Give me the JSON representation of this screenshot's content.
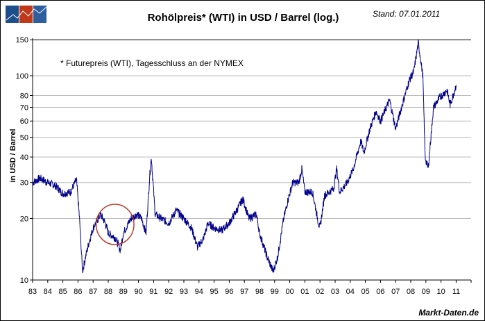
{
  "chart_data": {
    "type": "line",
    "title": "Rohölpreis* (WTI) in USD / Barrel (log.)",
    "date_label": "Stand: 07.01.2011",
    "note": "* Futurepreis (WTI), Tagesschluss an der NYMEX",
    "ylabel": "in USD / Barrel",
    "xlabel": "",
    "yscale": "log",
    "ylim": [
      10,
      150
    ],
    "xlim": [
      1983,
      2011.5
    ],
    "yticks": [
      10,
      20,
      30,
      40,
      50,
      60,
      70,
      80,
      100,
      150
    ],
    "xtick_labels": [
      "83",
      "84",
      "85",
      "86",
      "87",
      "88",
      "89",
      "90",
      "91",
      "92",
      "93",
      "94",
      "95",
      "96",
      "97",
      "98",
      "99",
      "00",
      "01",
      "02",
      "03",
      "04",
      "05",
      "06",
      "07",
      "08",
      "09",
      "10",
      "11"
    ],
    "series": [
      {
        "name": "WTI",
        "color": "#00008B",
        "points": [
          [
            1983.0,
            30
          ],
          [
            1983.5,
            31.5
          ],
          [
            1984.0,
            30
          ],
          [
            1984.5,
            29
          ],
          [
            1985.0,
            26.5
          ],
          [
            1985.5,
            27
          ],
          [
            1985.9,
            31
          ],
          [
            1986.1,
            20
          ],
          [
            1986.3,
            11
          ],
          [
            1986.5,
            13
          ],
          [
            1986.7,
            15
          ],
          [
            1987.0,
            18
          ],
          [
            1987.5,
            21
          ],
          [
            1987.8,
            19
          ],
          [
            1988.0,
            17
          ],
          [
            1988.5,
            16
          ],
          [
            1988.8,
            14
          ],
          [
            1989.0,
            17
          ],
          [
            1989.5,
            20
          ],
          [
            1989.9,
            21
          ],
          [
            1990.2,
            20
          ],
          [
            1990.5,
            17
          ],
          [
            1990.75,
            33
          ],
          [
            1990.85,
            40
          ],
          [
            1991.1,
            21
          ],
          [
            1991.5,
            20
          ],
          [
            1992.0,
            19
          ],
          [
            1992.5,
            22
          ],
          [
            1993.0,
            20
          ],
          [
            1993.5,
            18
          ],
          [
            1993.9,
            14.5
          ],
          [
            1994.3,
            16
          ],
          [
            1994.6,
            19
          ],
          [
            1995.0,
            18
          ],
          [
            1995.5,
            17.5
          ],
          [
            1996.0,
            19
          ],
          [
            1996.5,
            22
          ],
          [
            1996.9,
            25
          ],
          [
            1997.3,
            20
          ],
          [
            1997.8,
            21
          ],
          [
            1998.0,
            17
          ],
          [
            1998.5,
            13
          ],
          [
            1998.9,
            11
          ],
          [
            1999.2,
            13
          ],
          [
            1999.6,
            20
          ],
          [
            1999.9,
            25
          ],
          [
            2000.2,
            30
          ],
          [
            2000.6,
            30
          ],
          [
            2000.8,
            35
          ],
          [
            2001.0,
            27
          ],
          [
            2001.5,
            27
          ],
          [
            2001.9,
            19
          ],
          [
            2002.0,
            18
          ],
          [
            2002.3,
            26
          ],
          [
            2002.9,
            28
          ],
          [
            2003.1,
            35
          ],
          [
            2003.3,
            27
          ],
          [
            2003.8,
            30
          ],
          [
            2004.2,
            35
          ],
          [
            2004.7,
            48
          ],
          [
            2004.9,
            42
          ],
          [
            2005.3,
            55
          ],
          [
            2005.7,
            67
          ],
          [
            2006.0,
            60
          ],
          [
            2006.6,
            76
          ],
          [
            2007.0,
            55
          ],
          [
            2007.5,
            75
          ],
          [
            2007.9,
            95
          ],
          [
            2008.2,
            105
          ],
          [
            2008.5,
            145
          ],
          [
            2008.8,
            100
          ],
          [
            2008.95,
            40
          ],
          [
            2009.15,
            35
          ],
          [
            2009.5,
            70
          ],
          [
            2009.9,
            78
          ],
          [
            2010.4,
            85
          ],
          [
            2010.6,
            72
          ],
          [
            2010.9,
            85
          ],
          [
            2011.0,
            90
          ]
        ]
      }
    ],
    "annotation": {
      "type": "ellipse",
      "color": "#C0392B",
      "x_range": [
        1987.2,
        1989.7
      ],
      "y_center": 19
    },
    "source": "Markt-Daten.de"
  },
  "colors": {
    "logo": [
      "#1F4E8C",
      "#C0391B",
      "#2E5E9E"
    ]
  }
}
